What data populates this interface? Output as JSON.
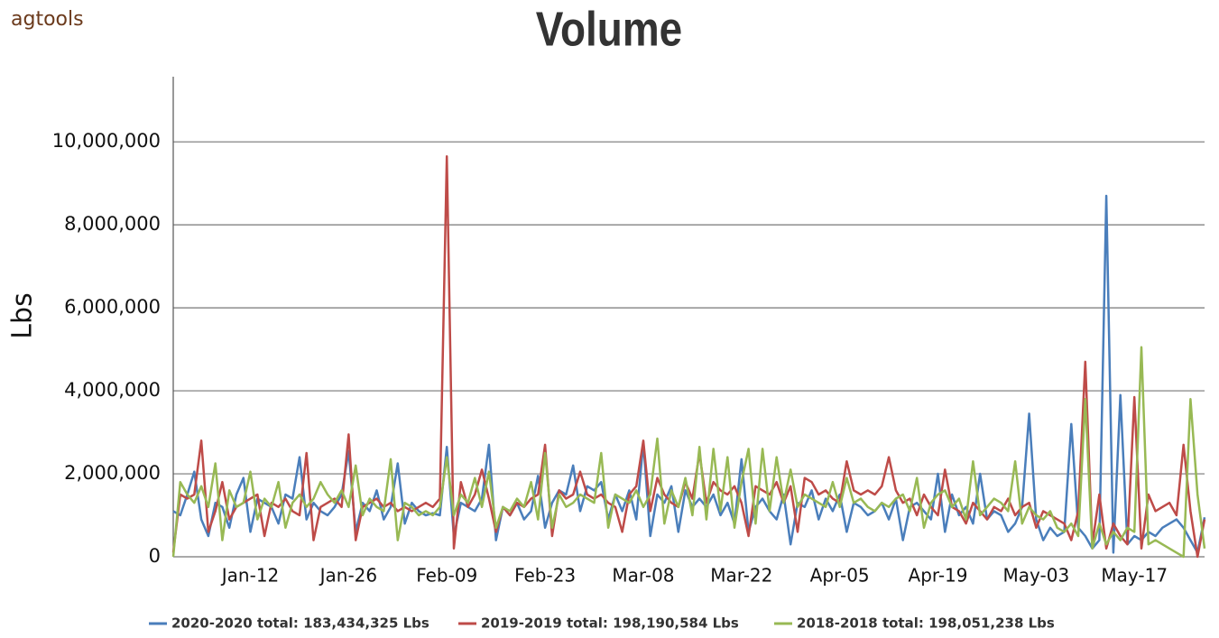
{
  "logo": "agtools",
  "chart_data": {
    "type": "line",
    "title": "Volume",
    "y_label": "Lbs",
    "categories": [
      null,
      null,
      null,
      null,
      null,
      null,
      null,
      null,
      null,
      null,
      null,
      "Jan-12",
      null,
      null,
      null,
      null,
      null,
      null,
      null,
      null,
      null,
      null,
      null,
      null,
      null,
      "Jan-26",
      null,
      null,
      null,
      null,
      null,
      null,
      null,
      null,
      null,
      null,
      null,
      null,
      null,
      "Feb-09",
      null,
      null,
      null,
      null,
      null,
      null,
      null,
      null,
      null,
      null,
      null,
      null,
      null,
      "Feb-23",
      null,
      null,
      null,
      null,
      null,
      null,
      null,
      null,
      null,
      null,
      null,
      null,
      null,
      "Mar-08",
      null,
      null,
      null,
      null,
      null,
      null,
      null,
      null,
      null,
      null,
      null,
      null,
      null,
      "Mar-22",
      null,
      null,
      null,
      null,
      null,
      null,
      null,
      null,
      null,
      null,
      null,
      null,
      null,
      "Apr-05",
      null,
      null,
      null,
      null,
      null,
      null,
      null,
      null,
      null,
      null,
      null,
      null,
      null,
      "Apr-19",
      null,
      null,
      null,
      null,
      null,
      null,
      null,
      null,
      null,
      null,
      null,
      null,
      null,
      "May-03",
      null,
      null,
      null,
      null,
      null,
      null,
      null,
      null,
      null,
      null,
      null,
      null,
      null,
      "May-17",
      null,
      null,
      null,
      null,
      null,
      null,
      null,
      null,
      null,
      null
    ],
    "series": [
      {
        "name": "2020-2020 total: 183,434,325 Lbs",
        "color": "#4a7ebb",
        "values": [
          1100000,
          1000000,
          1500000,
          2050000,
          900000,
          500000,
          1300000,
          1200000,
          700000,
          1500000,
          1900000,
          600000,
          1400000,
          1300000,
          1200000,
          800000,
          1500000,
          1400000,
          2400000,
          900000,
          1300000,
          1100000,
          1000000,
          1200000,
          1500000,
          2550000,
          600000,
          1300000,
          1100000,
          1600000,
          900000,
          1200000,
          2250000,
          800000,
          1300000,
          1100000,
          1000000,
          1050000,
          1000000,
          2650000,
          500000,
          1300000,
          1200000,
          1100000,
          1400000,
          2700000,
          400000,
          1200000,
          1000000,
          1300000,
          900000,
          1100000,
          1950000,
          700000,
          1300000,
          1600000,
          1500000,
          2200000,
          1100000,
          1700000,
          1600000,
          1800000,
          900000,
          1500000,
          1100000,
          1600000,
          900000,
          2750000,
          500000,
          1500000,
          1300000,
          1700000,
          600000,
          1600000,
          1200000,
          1400000,
          1200000,
          1500000,
          1000000,
          1300000,
          800000,
          2350000,
          600000,
          1200000,
          1400000,
          1100000,
          900000,
          1500000,
          300000,
          1300000,
          1200000,
          1600000,
          900000,
          1400000,
          1100000,
          1500000,
          600000,
          1300000,
          1200000,
          1000000,
          1100000,
          1300000,
          900000,
          1400000,
          400000,
          1200000,
          1300000,
          1100000,
          900000,
          2000000,
          600000,
          1500000,
          1000000,
          1200000,
          800000,
          2000000,
          900000,
          1100000,
          1000000,
          600000,
          800000,
          1200000,
          3450000,
          900000,
          400000,
          700000,
          500000,
          600000,
          3200000,
          700000,
          500000,
          200000,
          400000,
          8700000,
          100000,
          3900000,
          300000,
          500000,
          400000,
          600000,
          500000,
          700000,
          800000,
          900000,
          700000,
          400000,
          100000,
          950000
        ]
      },
      {
        "name": "2019-2019 total: 198,190,584 Lbs",
        "color": "#be4b48",
        "values": [
          100000,
          1500000,
          1400000,
          1500000,
          2800000,
          600000,
          1100000,
          1800000,
          900000,
          1200000,
          1300000,
          1400000,
          1500000,
          500000,
          1300000,
          1200000,
          1400000,
          1100000,
          1000000,
          2500000,
          400000,
          1200000,
          1300000,
          1400000,
          1200000,
          2950000,
          400000,
          1200000,
          1300000,
          1400000,
          1200000,
          1300000,
          1100000,
          1200000,
          1100000,
          1200000,
          1300000,
          1200000,
          1400000,
          9650000,
          200000,
          1800000,
          1200000,
          1500000,
          2100000,
          1400000,
          600000,
          1200000,
          1000000,
          1300000,
          1200000,
          1400000,
          1500000,
          2700000,
          500000,
          1600000,
          1400000,
          1500000,
          2050000,
          1500000,
          1400000,
          1500000,
          1300000,
          1200000,
          600000,
          1500000,
          1700000,
          2800000,
          1100000,
          1900000,
          1500000,
          1300000,
          1200000,
          1800000,
          1400000,
          2500000,
          1300000,
          1800000,
          1600000,
          1500000,
          1700000,
          1300000,
          500000,
          1700000,
          1600000,
          1500000,
          1800000,
          1300000,
          1700000,
          600000,
          1900000,
          1800000,
          1500000,
          1600000,
          1400000,
          1300000,
          2300000,
          1600000,
          1500000,
          1600000,
          1500000,
          1700000,
          2400000,
          1600000,
          1300000,
          1400000,
          1000000,
          1500000,
          1200000,
          1000000,
          2100000,
          1200000,
          1100000,
          800000,
          1300000,
          1100000,
          900000,
          1200000,
          1100000,
          1400000,
          1000000,
          1200000,
          1300000,
          700000,
          1100000,
          1000000,
          900000,
          800000,
          400000,
          1100000,
          4700000,
          300000,
          1500000,
          200000,
          800000,
          500000,
          300000,
          3850000,
          200000,
          1500000,
          1100000,
          1200000,
          1300000,
          1000000,
          2700000,
          1100000,
          0,
          900000
        ]
      },
      {
        "name": "2018-2018 total: 198,051,238 Lbs",
        "color": "#98b954",
        "values": [
          0,
          1800000,
          1500000,
          1300000,
          1700000,
          1200000,
          2250000,
          400000,
          1600000,
          1200000,
          1300000,
          2050000,
          900000,
          1400000,
          1200000,
          1800000,
          700000,
          1300000,
          1500000,
          1200000,
          1400000,
          1800000,
          1500000,
          1300000,
          1600000,
          1200000,
          2200000,
          1000000,
          1400000,
          1200000,
          1100000,
          2350000,
          400000,
          1300000,
          1200000,
          1000000,
          1100000,
          1000000,
          1200000,
          2400000,
          1000000,
          1500000,
          1300000,
          1900000,
          1200000,
          2050000,
          700000,
          1200000,
          1100000,
          1400000,
          1200000,
          1800000,
          900000,
          2500000,
          700000,
          1500000,
          1200000,
          1300000,
          1500000,
          1400000,
          1300000,
          2500000,
          700000,
          1500000,
          1400000,
          1300000,
          1600000,
          1200000,
          1500000,
          2850000,
          800000,
          1600000,
          1200000,
          1900000,
          1000000,
          2650000,
          900000,
          2600000,
          1100000,
          2400000,
          700000,
          1800000,
          2600000,
          800000,
          2600000,
          1100000,
          2400000,
          1300000,
          2100000,
          1200000,
          1500000,
          1400000,
          1300000,
          1200000,
          1800000,
          1200000,
          1900000,
          1300000,
          1400000,
          1200000,
          1100000,
          1300000,
          1200000,
          1400000,
          1500000,
          1100000,
          1900000,
          700000,
          1300000,
          1500000,
          1600000,
          1200000,
          1400000,
          900000,
          2300000,
          1000000,
          1200000,
          1400000,
          1300000,
          1100000,
          2300000,
          800000,
          1200000,
          1000000,
          900000,
          1100000,
          700000,
          600000,
          800000,
          500000,
          3800000,
          200000,
          800000,
          300000,
          600000,
          400000,
          700000,
          600000,
          5050000,
          300000,
          400000,
          300000,
          200000,
          100000,
          0,
          3800000,
          1500000,
          200000
        ]
      }
    ],
    "ylim": [
      0,
      11570000
    ],
    "yticks": [
      0,
      {
        "value": 2000000,
        "label": "2,000,000"
      },
      {
        "value": 4000000,
        "label": "4,000,000"
      },
      {
        "value": 6000000,
        "label": "6,000,000"
      },
      {
        "value": 8000000,
        "label": "8,000,000"
      },
      {
        "value": 10000000,
        "label": "10,000,000"
      }
    ],
    "grid": true
  }
}
